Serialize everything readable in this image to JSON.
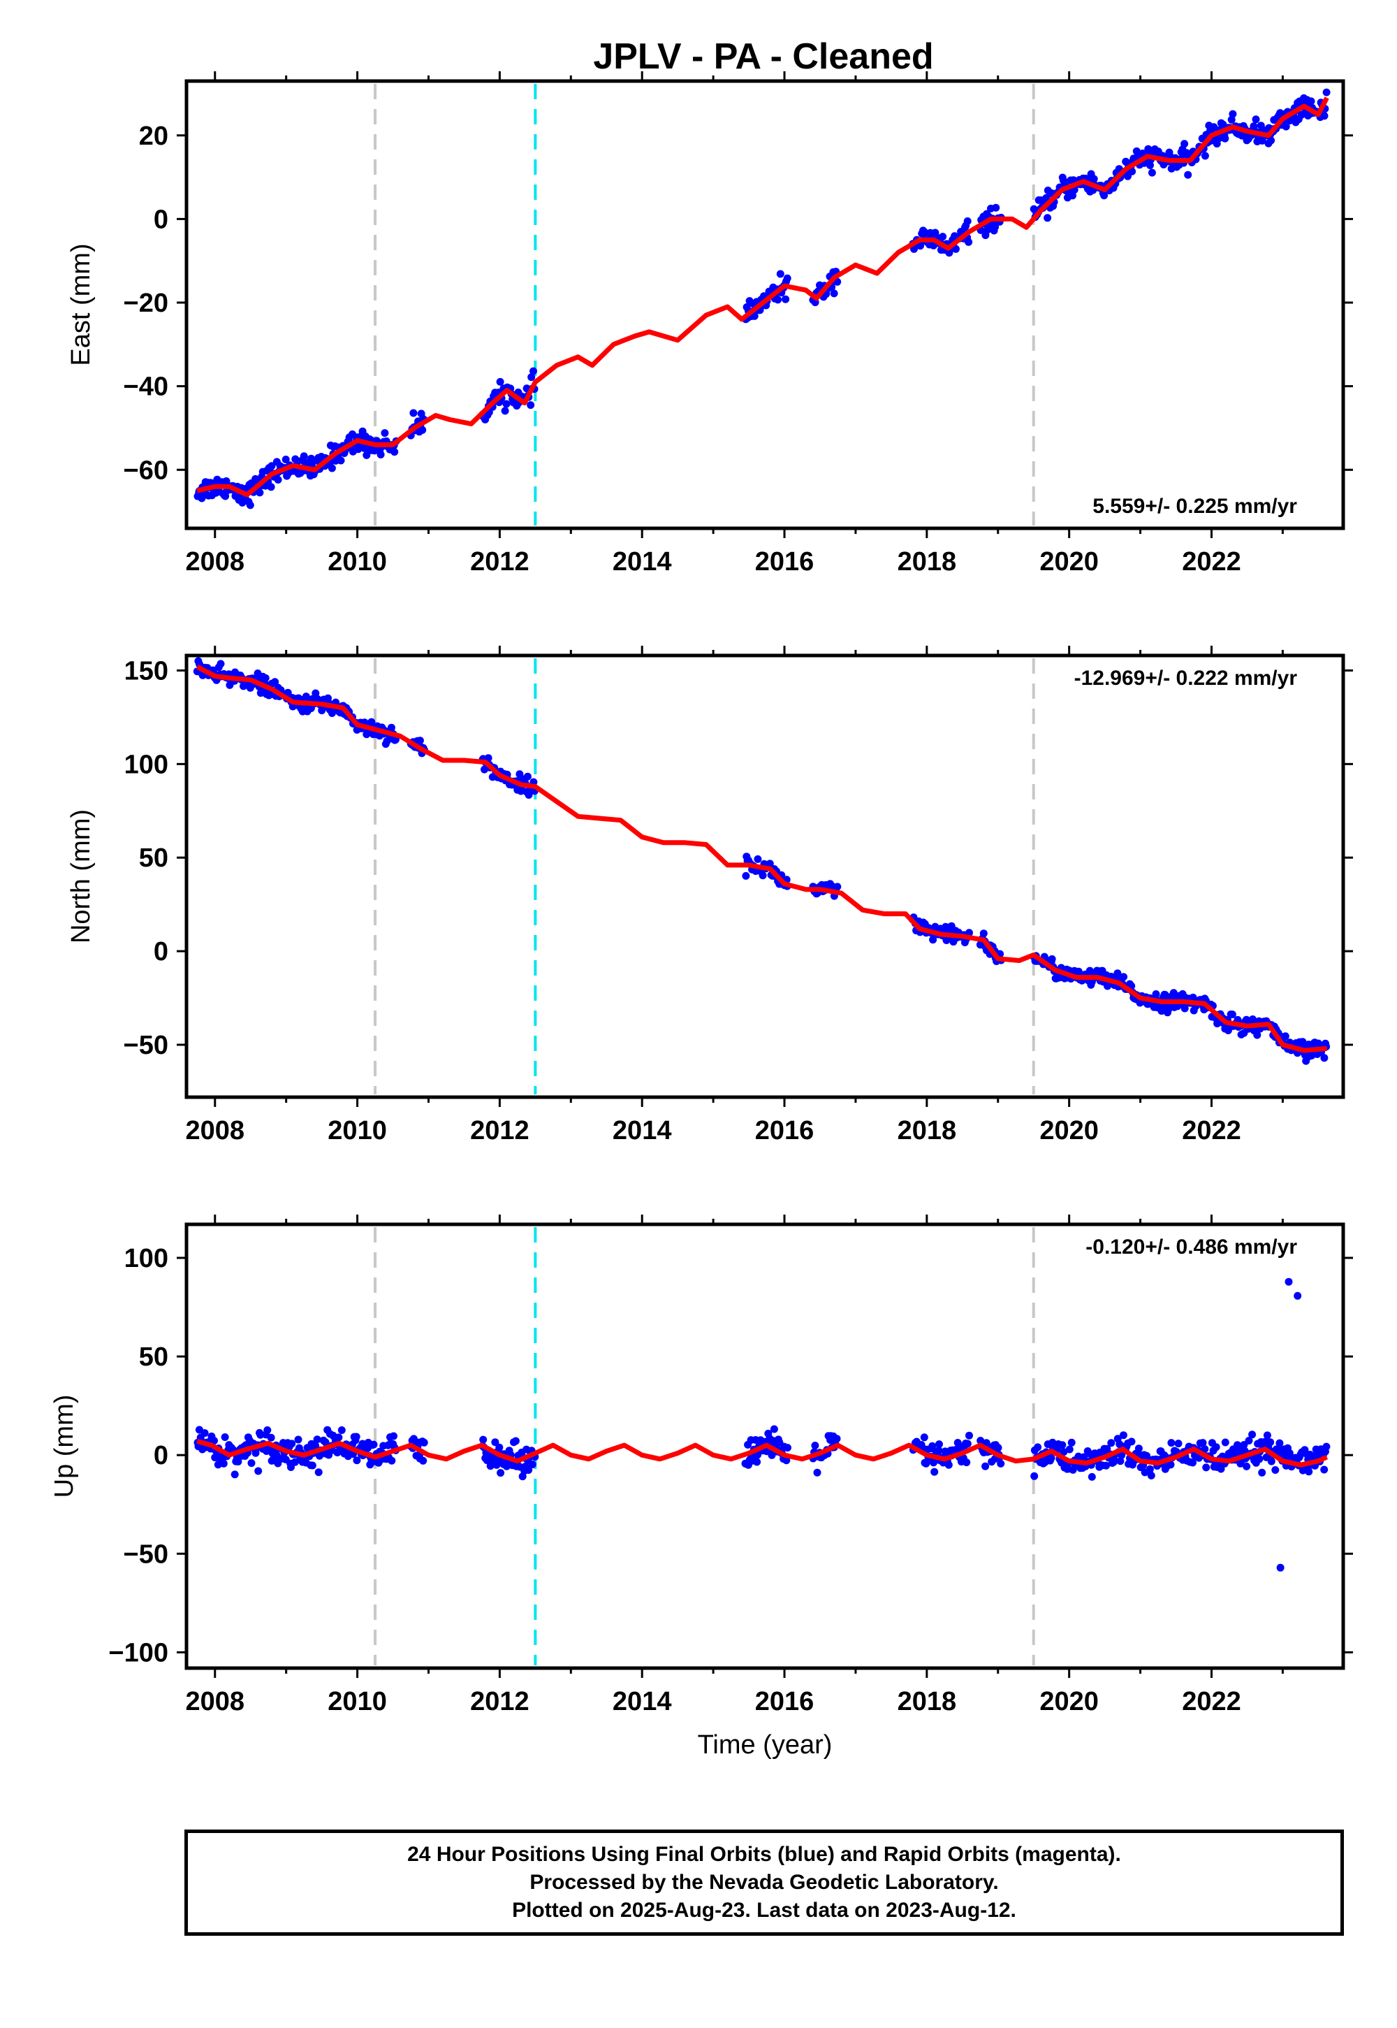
{
  "title": "JPLV  - PA - Cleaned",
  "colors": {
    "observations": "#0000ff",
    "model": "#ff0000",
    "equipment_change": "#c8c8c8",
    "earthquake": "#00e5ee"
  },
  "footer": {
    "line1": "24 Hour Positions Using Final Orbits (blue) and Rapid Orbits (magenta).",
    "line2": "Processed by the Nevada Geodetic Laboratory.",
    "line3": "Plotted on 2025-Aug-23. Last data on 2023-Aug-12."
  },
  "chart_data": [
    {
      "type": "scatter",
      "ylabel": "East (mm)",
      "xlabel": "",
      "xlim": [
        2007.6,
        2023.85
      ],
      "ylim": [
        -74,
        33
      ],
      "xticks": [
        2008,
        2010,
        2012,
        2014,
        2016,
        2018,
        2020,
        2022
      ],
      "yticks": [
        -60,
        -40,
        -20,
        0,
        20
      ],
      "ytick_labels": [
        "−60",
        "−40",
        "−20",
        "0",
        "20"
      ],
      "rate_label": "5.559+/- 0.225 mm/yr",
      "rate_position": "bottom-right",
      "vlines": [
        {
          "x": 2010.25,
          "color": "#c8c8c8"
        },
        {
          "x": 2012.5,
          "color": "#00e5ee"
        },
        {
          "x": 2019.5,
          "color": "#c8c8c8"
        }
      ],
      "model_x": [
        2007.75,
        2008.0,
        2008.2,
        2008.45,
        2008.8,
        2009.1,
        2009.4,
        2009.7,
        2010.0,
        2010.25,
        2010.5,
        2010.8,
        2011.1,
        2011.3,
        2011.6,
        2011.9,
        2012.1,
        2012.35,
        2012.5,
        2012.8,
        2013.1,
        2013.3,
        2013.6,
        2013.9,
        2014.1,
        2014.5,
        2014.9,
        2015.2,
        2015.4,
        2015.7,
        2016.0,
        2016.3,
        2016.45,
        2016.7,
        2017.0,
        2017.3,
        2017.6,
        2017.9,
        2018.1,
        2018.3,
        2018.6,
        2018.9,
        2019.2,
        2019.4,
        2019.6,
        2019.9,
        2020.2,
        2020.5,
        2020.8,
        2021.1,
        2021.4,
        2021.7,
        2022.0,
        2022.3,
        2022.5,
        2022.8,
        2023.0,
        2023.3,
        2023.5,
        2023.62
      ],
      "model_y": [
        -65,
        -64,
        -64,
        -66,
        -61,
        -59,
        -60,
        -56,
        -53,
        -54,
        -54,
        -50,
        -47,
        -48,
        -49,
        -44,
        -41,
        -44,
        -39,
        -35,
        -33,
        -35,
        -30,
        -28,
        -27,
        -29,
        -23,
        -21,
        -24,
        -20,
        -16,
        -17,
        -19,
        -14,
        -11,
        -13,
        -8,
        -5,
        -5,
        -7,
        -3,
        0,
        0,
        -2,
        2,
        7,
        9,
        7,
        12,
        15,
        14,
        14,
        20,
        22,
        21,
        20,
        24,
        27,
        25,
        29
      ]
    },
    {
      "type": "scatter",
      "ylabel": "North (mm)",
      "xlabel": "",
      "xlim": [
        2007.6,
        2023.85
      ],
      "ylim": [
        -78,
        158
      ],
      "xticks": [
        2008,
        2010,
        2012,
        2014,
        2016,
        2018,
        2020,
        2022
      ],
      "yticks": [
        -50,
        0,
        50,
        100,
        150
      ],
      "ytick_labels": [
        "−50",
        "0",
        "50",
        "100",
        "150"
      ],
      "rate_label": "-12.969+/- 0.222 mm/yr",
      "rate_position": "top-right",
      "vlines": [
        {
          "x": 2010.25,
          "color": "#c8c8c8"
        },
        {
          "x": 2012.5,
          "color": "#00e5ee"
        },
        {
          "x": 2019.5,
          "color": "#c8c8c8"
        }
      ],
      "model_x": [
        2007.75,
        2008.0,
        2008.2,
        2008.5,
        2008.8,
        2009.1,
        2009.5,
        2009.8,
        2010.0,
        2010.3,
        2010.6,
        2010.9,
        2011.2,
        2011.5,
        2011.8,
        2012.0,
        2012.3,
        2012.5,
        2012.8,
        2013.1,
        2013.4,
        2013.7,
        2014.0,
        2014.3,
        2014.6,
        2014.9,
        2015.2,
        2015.5,
        2015.8,
        2016.0,
        2016.3,
        2016.5,
        2016.8,
        2017.1,
        2017.4,
        2017.7,
        2017.9,
        2018.2,
        2018.5,
        2018.8,
        2019.0,
        2019.3,
        2019.5,
        2019.8,
        2020.1,
        2020.4,
        2020.7,
        2021.0,
        2021.3,
        2021.6,
        2021.9,
        2022.2,
        2022.5,
        2022.8,
        2023.0,
        2023.3,
        2023.62
      ],
      "model_y": [
        152,
        147,
        146,
        145,
        140,
        133,
        132,
        130,
        121,
        118,
        115,
        108,
        102,
        102,
        101,
        94,
        89,
        88,
        80,
        72,
        71,
        70,
        61,
        58,
        58,
        57,
        46,
        46,
        44,
        36,
        33,
        33,
        31,
        22,
        20,
        20,
        12,
        9,
        8,
        6,
        -4,
        -5,
        -2,
        -10,
        -14,
        -14,
        -17,
        -25,
        -27,
        -27,
        -28,
        -38,
        -40,
        -39,
        -50,
        -53,
        -52
      ]
    },
    {
      "type": "scatter",
      "ylabel": "Up (mm)",
      "xlabel": "Time (year)",
      "xlim": [
        2007.6,
        2023.85
      ],
      "ylim": [
        -108,
        117
      ],
      "xticks": [
        2008,
        2010,
        2012,
        2014,
        2016,
        2018,
        2020,
        2022
      ],
      "yticks": [
        -100,
        -50,
        0,
        50,
        100
      ],
      "ytick_labels": [
        "−100",
        "−50",
        "0",
        "50",
        "100"
      ],
      "rate_label": "-0.120+/- 0.486 mm/yr",
      "rate_position": "top-right",
      "vlines": [
        {
          "x": 2010.25,
          "color": "#c8c8c8"
        },
        {
          "x": 2012.5,
          "color": "#00e5ee"
        },
        {
          "x": 2019.5,
          "color": "#c8c8c8"
        }
      ],
      "model_x": [
        2007.75,
        2007.95,
        2008.2,
        2008.45,
        2008.75,
        2009.0,
        2009.25,
        2009.5,
        2009.75,
        2010.0,
        2010.25,
        2010.5,
        2010.75,
        2011.0,
        2011.25,
        2011.5,
        2011.75,
        2012.0,
        2012.25,
        2012.5,
        2012.75,
        2013.0,
        2013.25,
        2013.5,
        2013.75,
        2014.0,
        2014.25,
        2014.5,
        2014.75,
        2015.0,
        2015.25,
        2015.5,
        2015.75,
        2016.0,
        2016.25,
        2016.5,
        2016.75,
        2017.0,
        2017.25,
        2017.5,
        2017.75,
        2018.0,
        2018.25,
        2018.5,
        2018.75,
        2019.0,
        2019.25,
        2019.5,
        2019.75,
        2020.0,
        2020.25,
        2020.5,
        2020.75,
        2021.0,
        2021.25,
        2021.5,
        2021.75,
        2022.0,
        2022.25,
        2022.5,
        2022.75,
        2023.0,
        2023.25,
        2023.5,
        2023.62
      ],
      "model_y": [
        7,
        5,
        0,
        3,
        6,
        2,
        0,
        3,
        6,
        2,
        -1,
        2,
        5,
        0,
        -2,
        2,
        5,
        0,
        -3,
        1,
        5,
        0,
        -2,
        2,
        5,
        0,
        -2,
        1,
        5,
        0,
        -2,
        1,
        5,
        0,
        -2,
        1,
        5,
        0,
        -2,
        1,
        5,
        0,
        -2,
        1,
        5,
        0,
        -3,
        -2,
        2,
        -3,
        -4,
        -1,
        3,
        -3,
        -4,
        -1,
        3,
        -2,
        -3,
        0,
        3,
        -3,
        -5,
        -3,
        -1
      ]
    }
  ]
}
